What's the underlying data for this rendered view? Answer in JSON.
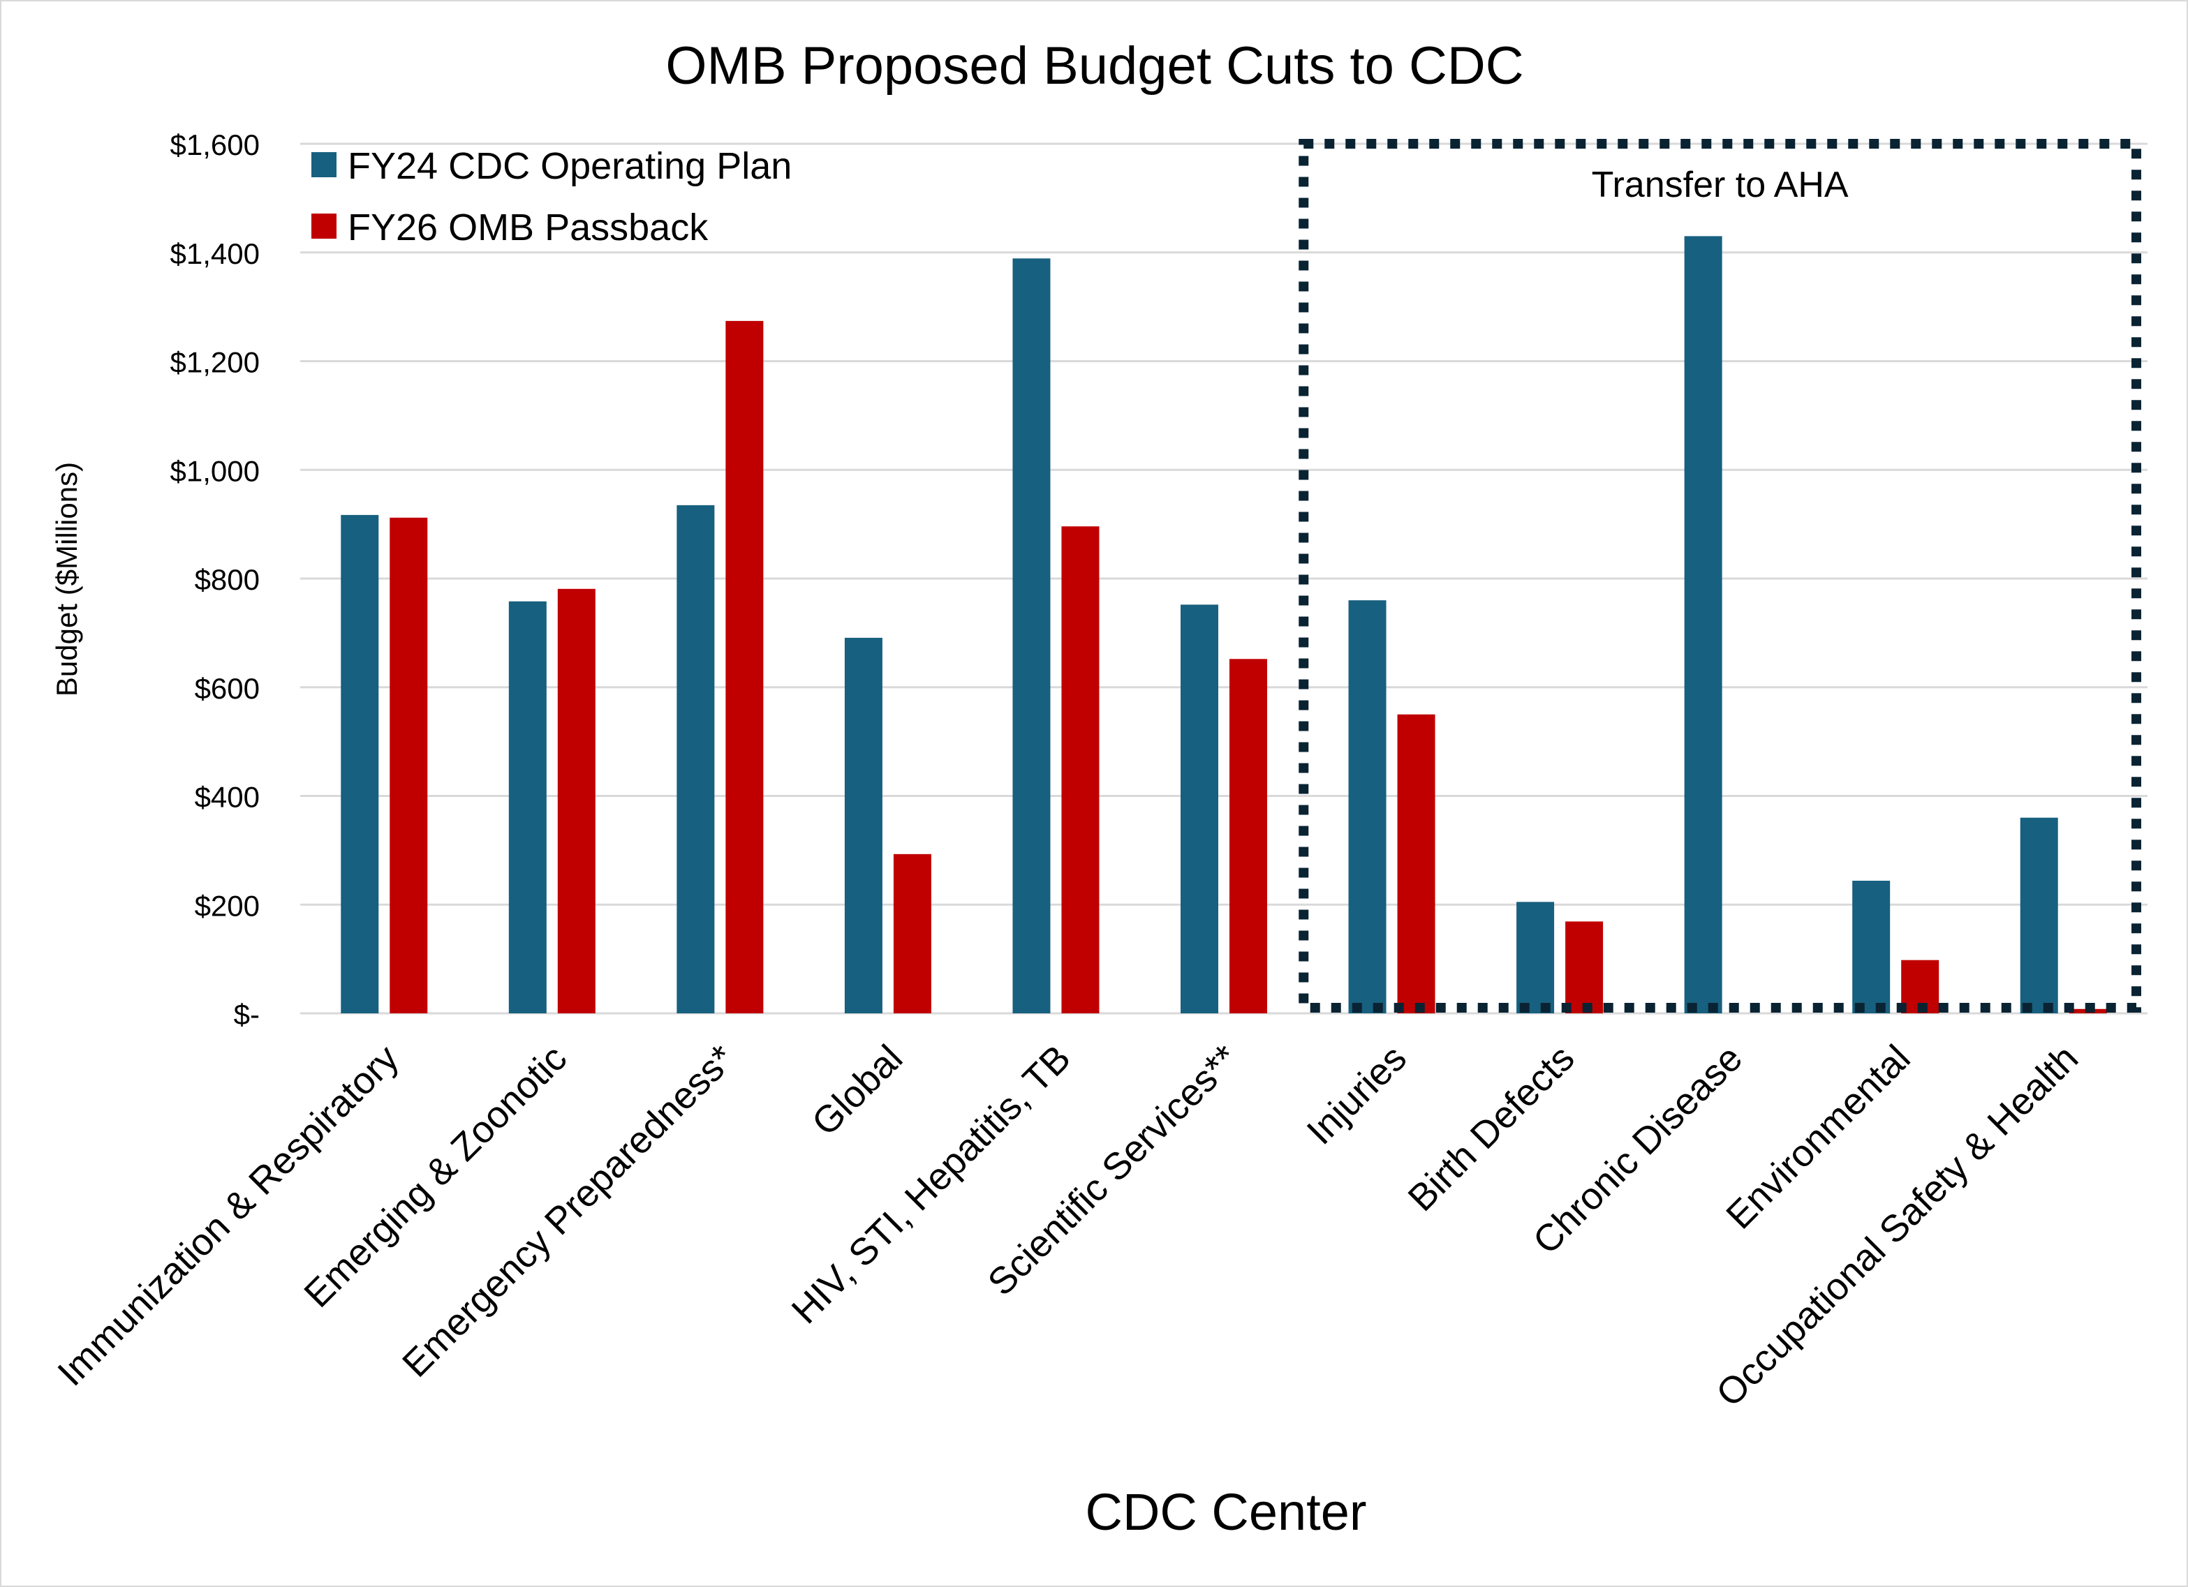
{
  "chart_data": {
    "type": "bar",
    "title": "OMB Proposed Budget Cuts to CDC",
    "xlabel": "CDC Center",
    "ylabel": "Budget ($Millions)",
    "ylim": [
      0,
      1600
    ],
    "yticks": [
      0,
      200,
      400,
      600,
      800,
      1000,
      1200,
      1400,
      1600
    ],
    "ytick_labels": [
      "$-",
      "$200",
      "$400",
      "$600",
      "$800",
      "$1,000",
      "$1,200",
      "$1,400",
      "$1,600"
    ],
    "grid": true,
    "legend_position": "top-left",
    "categories": [
      "Immunization & Respiratory",
      "Emerging & Zoonotic",
      "Emergency Preparedness*",
      "Global",
      "HIV, STI, Hepatitis, TB",
      "Scientific Services**",
      "Injuries",
      "Birth Defects",
      "Chronic Disease",
      "Environmental",
      "Occupational Safety & Health"
    ],
    "series": [
      {
        "name": "FY24 CDC Operating Plan",
        "color": "#17607f",
        "values": [
          917,
          758,
          935,
          691,
          1389,
          752,
          760,
          205,
          1430,
          244,
          360
        ]
      },
      {
        "name": "FY26 OMB Passback",
        "color": "#c00000",
        "values": [
          912,
          781,
          1274,
          293,
          896,
          652,
          550,
          169,
          0,
          98,
          8
        ]
      }
    ],
    "annotation": {
      "text": "Transfer to AHA",
      "range_start": "Injuries",
      "range_end": "Occupational Safety & Health",
      "color": "#0a2333"
    }
  }
}
